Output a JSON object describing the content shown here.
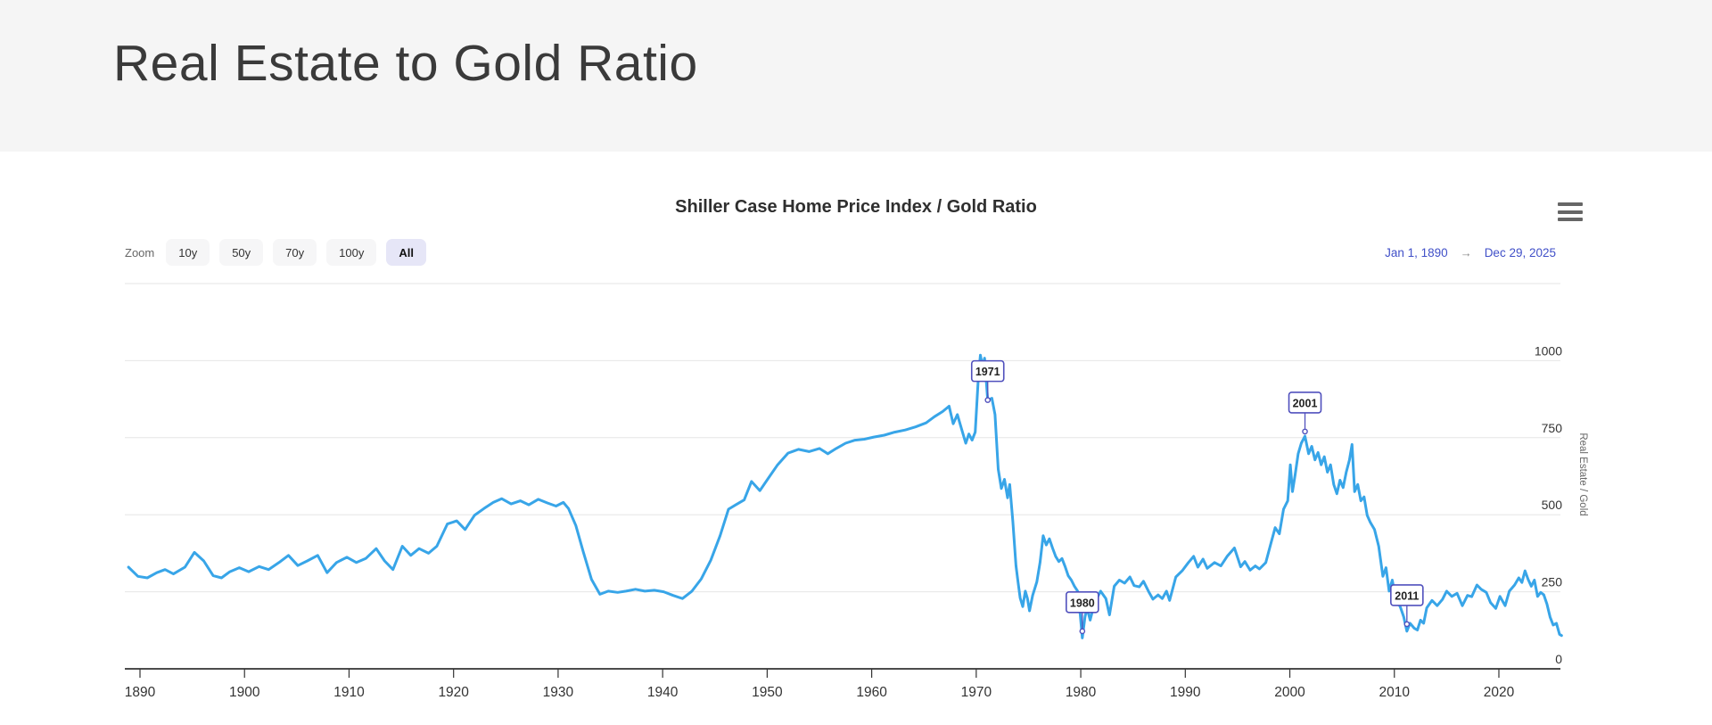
{
  "page": {
    "title": "Real Estate to Gold Ratio"
  },
  "chart": {
    "title": "Shiller Case Home Price Index / Gold Ratio",
    "zoom_label": "Zoom",
    "zoom_buttons": [
      {
        "label": "10y",
        "selected": false
      },
      {
        "label": "50y",
        "selected": false
      },
      {
        "label": "70y",
        "selected": false
      },
      {
        "label": "100y",
        "selected": false
      },
      {
        "label": "All",
        "selected": true
      }
    ],
    "range": {
      "from": "Jan 1, 1890",
      "arrow": "→",
      "to": "Dec 29, 2025"
    },
    "colors": {
      "line": "#38a5e8",
      "annotation": "#5050bd",
      "range_link": "#4150c8",
      "grid": "#e6e6e6",
      "axis": "#333333",
      "header_bg": "#f5f5f5",
      "selected_zoom_bg": "#e6e6f7"
    }
  },
  "chart_data": {
    "type": "line",
    "title": "Shiller Case Home Price Index / Gold Ratio",
    "xlabel": "",
    "ylabel": "Real Estate / Gold",
    "legend": "none",
    "grid": true,
    "xaxis": {
      "min": 1888.9,
      "max": 2026,
      "ticks": [
        1890,
        1900,
        1910,
        1920,
        1930,
        1940,
        1950,
        1960,
        1970,
        1980,
        1990,
        2000,
        2010,
        2020
      ]
    },
    "yaxis": {
      "min": 0,
      "max": 1250,
      "position": "right",
      "title": "Real Estate / Gold",
      "ticks": [
        0,
        250,
        500,
        750,
        1000
      ]
    },
    "annotations": [
      {
        "label": "1971",
        "year": 1971.1,
        "value": 872
      },
      {
        "label": "1980",
        "year": 1980.15,
        "value": 122
      },
      {
        "label": "2001",
        "year": 2001.45,
        "value": 770
      },
      {
        "label": "2011",
        "year": 2011.2,
        "value": 145
      }
    ],
    "series": [
      {
        "name": "Real Estate / Gold",
        "color": "#38a5e8",
        "points": [
          [
            1888.9,
            330
          ],
          [
            1889.8,
            300
          ],
          [
            1890.7,
            295
          ],
          [
            1891.6,
            312
          ],
          [
            1892.4,
            322
          ],
          [
            1893.2,
            308
          ],
          [
            1894.3,
            330
          ],
          [
            1895.2,
            378
          ],
          [
            1896.1,
            350
          ],
          [
            1897.0,
            302
          ],
          [
            1897.8,
            295
          ],
          [
            1898.6,
            315
          ],
          [
            1899.5,
            328
          ],
          [
            1900.4,
            315
          ],
          [
            1901.4,
            332
          ],
          [
            1902.3,
            322
          ],
          [
            1903.3,
            345
          ],
          [
            1904.2,
            368
          ],
          [
            1905.1,
            335
          ],
          [
            1906.0,
            350
          ],
          [
            1907.0,
            368
          ],
          [
            1907.9,
            312
          ],
          [
            1908.8,
            345
          ],
          [
            1909.8,
            362
          ],
          [
            1910.7,
            345
          ],
          [
            1911.6,
            358
          ],
          [
            1912.6,
            390
          ],
          [
            1913.4,
            350
          ],
          [
            1914.2,
            322
          ],
          [
            1915.1,
            398
          ],
          [
            1915.9,
            368
          ],
          [
            1916.7,
            390
          ],
          [
            1917.6,
            375
          ],
          [
            1918.4,
            398
          ],
          [
            1919.4,
            470
          ],
          [
            1920.3,
            480
          ],
          [
            1921.1,
            452
          ],
          [
            1922.0,
            498
          ],
          [
            1922.9,
            520
          ],
          [
            1923.8,
            540
          ],
          [
            1924.6,
            552
          ],
          [
            1925.5,
            535
          ],
          [
            1926.4,
            545
          ],
          [
            1927.2,
            532
          ],
          [
            1928.1,
            550
          ],
          [
            1929.0,
            538
          ],
          [
            1929.8,
            528
          ],
          [
            1930.5,
            540
          ],
          [
            1931.0,
            520
          ],
          [
            1931.7,
            465
          ],
          [
            1932.4,
            380
          ],
          [
            1933.2,
            290
          ],
          [
            1934.0,
            242
          ],
          [
            1934.8,
            252
          ],
          [
            1935.7,
            248
          ],
          [
            1936.5,
            252
          ],
          [
            1937.4,
            258
          ],
          [
            1938.3,
            252
          ],
          [
            1939.2,
            255
          ],
          [
            1940.1,
            250
          ],
          [
            1941.0,
            238
          ],
          [
            1941.9,
            228
          ],
          [
            1942.8,
            252
          ],
          [
            1943.7,
            292
          ],
          [
            1944.6,
            352
          ],
          [
            1945.5,
            432
          ],
          [
            1946.3,
            518
          ],
          [
            1947.0,
            532
          ],
          [
            1947.8,
            548
          ],
          [
            1948.5,
            608
          ],
          [
            1949.3,
            578
          ],
          [
            1950.1,
            618
          ],
          [
            1951.0,
            662
          ],
          [
            1952.0,
            700
          ],
          [
            1953.0,
            712
          ],
          [
            1954.0,
            705
          ],
          [
            1955.0,
            715
          ],
          [
            1955.8,
            698
          ],
          [
            1956.6,
            715
          ],
          [
            1957.5,
            732
          ],
          [
            1958.4,
            742
          ],
          [
            1959.3,
            745
          ],
          [
            1960.2,
            752
          ],
          [
            1961.2,
            758
          ],
          [
            1962.2,
            768
          ],
          [
            1963.2,
            775
          ],
          [
            1964.2,
            785
          ],
          [
            1965.2,
            798
          ],
          [
            1966.0,
            818
          ],
          [
            1966.8,
            835
          ],
          [
            1967.4,
            852
          ],
          [
            1967.8,
            795
          ],
          [
            1968.2,
            825
          ],
          [
            1968.6,
            778
          ],
          [
            1969.0,
            732
          ],
          [
            1969.3,
            762
          ],
          [
            1969.6,
            742
          ],
          [
            1969.9,
            768
          ],
          [
            1970.2,
            945
          ],
          [
            1970.4,
            1018
          ],
          [
            1970.6,
            980
          ],
          [
            1970.8,
            1008
          ],
          [
            1971.1,
            872
          ],
          [
            1971.5,
            878
          ],
          [
            1971.8,
            825
          ],
          [
            1972.1,
            648
          ],
          [
            1972.4,
            585
          ],
          [
            1972.7,
            615
          ],
          [
            1973.0,
            555
          ],
          [
            1973.2,
            598
          ],
          [
            1973.5,
            478
          ],
          [
            1973.8,
            335
          ],
          [
            1974.0,
            282
          ],
          [
            1974.2,
            230
          ],
          [
            1974.45,
            202
          ],
          [
            1974.7,
            252
          ],
          [
            1974.9,
            228
          ],
          [
            1975.1,
            188
          ],
          [
            1975.4,
            238
          ],
          [
            1975.8,
            282
          ],
          [
            1976.1,
            345
          ],
          [
            1976.4,
            432
          ],
          [
            1976.7,
            402
          ],
          [
            1977.0,
            422
          ],
          [
            1977.3,
            392
          ],
          [
            1977.6,
            365
          ],
          [
            1977.9,
            348
          ],
          [
            1978.2,
            358
          ],
          [
            1978.5,
            332
          ],
          [
            1978.8,
            302
          ],
          [
            1979.1,
            288
          ],
          [
            1979.4,
            268
          ],
          [
            1979.7,
            252
          ],
          [
            1979.95,
            175
          ],
          [
            1980.15,
            100
          ],
          [
            1980.4,
            168
          ],
          [
            1980.6,
            198
          ],
          [
            1980.9,
            158
          ],
          [
            1981.3,
            212
          ],
          [
            1981.9,
            252
          ],
          [
            1982.4,
            228
          ],
          [
            1982.75,
            175
          ],
          [
            1983.2,
            268
          ],
          [
            1983.7,
            288
          ],
          [
            1984.2,
            278
          ],
          [
            1984.7,
            298
          ],
          [
            1985.1,
            270
          ],
          [
            1985.6,
            266
          ],
          [
            1986.0,
            284
          ],
          [
            1986.5,
            250
          ],
          [
            1986.9,
            226
          ],
          [
            1987.4,
            240
          ],
          [
            1987.8,
            228
          ],
          [
            1988.2,
            252
          ],
          [
            1988.5,
            222
          ],
          [
            1989.1,
            298
          ],
          [
            1989.7,
            318
          ],
          [
            1990.3,
            345
          ],
          [
            1990.8,
            365
          ],
          [
            1991.2,
            330
          ],
          [
            1991.7,
            356
          ],
          [
            1992.1,
            326
          ],
          [
            1992.8,
            345
          ],
          [
            1993.4,
            334
          ],
          [
            1994.0,
            365
          ],
          [
            1994.7,
            392
          ],
          [
            1995.3,
            331
          ],
          [
            1995.7,
            348
          ],
          [
            1996.2,
            320
          ],
          [
            1996.7,
            334
          ],
          [
            1997.1,
            324
          ],
          [
            1997.7,
            345
          ],
          [
            1998.2,
            408
          ],
          [
            1998.6,
            458
          ],
          [
            1999.0,
            438
          ],
          [
            1999.4,
            518
          ],
          [
            1999.8,
            545
          ],
          [
            2000.05,
            662
          ],
          [
            2000.25,
            575
          ],
          [
            2000.5,
            628
          ],
          [
            2000.8,
            698
          ],
          [
            2001.1,
            732
          ],
          [
            2001.45,
            755
          ],
          [
            2001.8,
            698
          ],
          [
            2002.1,
            722
          ],
          [
            2002.4,
            678
          ],
          [
            2002.7,
            702
          ],
          [
            2003.0,
            662
          ],
          [
            2003.3,
            688
          ],
          [
            2003.6,
            638
          ],
          [
            2003.9,
            662
          ],
          [
            2004.2,
            598
          ],
          [
            2004.5,
            568
          ],
          [
            2004.8,
            612
          ],
          [
            2005.1,
            588
          ],
          [
            2005.4,
            638
          ],
          [
            2005.7,
            678
          ],
          [
            2005.95,
            728
          ],
          [
            2006.2,
            575
          ],
          [
            2006.5,
            598
          ],
          [
            2006.8,
            545
          ],
          [
            2007.1,
            558
          ],
          [
            2007.4,
            498
          ],
          [
            2007.7,
            475
          ],
          [
            2008.1,
            452
          ],
          [
            2008.5,
            398
          ],
          [
            2008.9,
            300
          ],
          [
            2009.2,
            328
          ],
          [
            2009.5,
            252
          ],
          [
            2009.8,
            288
          ],
          [
            2010.1,
            235
          ],
          [
            2010.6,
            198
          ],
          [
            2010.9,
            168
          ],
          [
            2011.2,
            122
          ],
          [
            2011.5,
            148
          ],
          [
            2011.9,
            132
          ],
          [
            2012.2,
            126
          ],
          [
            2012.5,
            158
          ],
          [
            2012.8,
            148
          ],
          [
            2013.1,
            198
          ],
          [
            2013.6,
            222
          ],
          [
            2014.1,
            205
          ],
          [
            2014.6,
            225
          ],
          [
            2015.0,
            252
          ],
          [
            2015.5,
            235
          ],
          [
            2016.0,
            245
          ],
          [
            2016.5,
            205
          ],
          [
            2017.0,
            238
          ],
          [
            2017.4,
            234
          ],
          [
            2017.9,
            272
          ],
          [
            2018.3,
            258
          ],
          [
            2018.8,
            248
          ],
          [
            2019.2,
            215
          ],
          [
            2019.7,
            196
          ],
          [
            2020.1,
            235
          ],
          [
            2020.6,
            205
          ],
          [
            2021.0,
            252
          ],
          [
            2021.5,
            272
          ],
          [
            2021.9,
            295
          ],
          [
            2022.2,
            280
          ],
          [
            2022.5,
            318
          ],
          [
            2022.8,
            290
          ],
          [
            2023.1,
            268
          ],
          [
            2023.4,
            288
          ],
          [
            2023.7,
            235
          ],
          [
            2024.0,
            248
          ],
          [
            2024.3,
            240
          ],
          [
            2024.6,
            210
          ],
          [
            2024.9,
            168
          ],
          [
            2025.2,
            142
          ],
          [
            2025.5,
            148
          ],
          [
            2025.8,
            112
          ],
          [
            2026.0,
            108
          ]
        ]
      }
    ]
  }
}
